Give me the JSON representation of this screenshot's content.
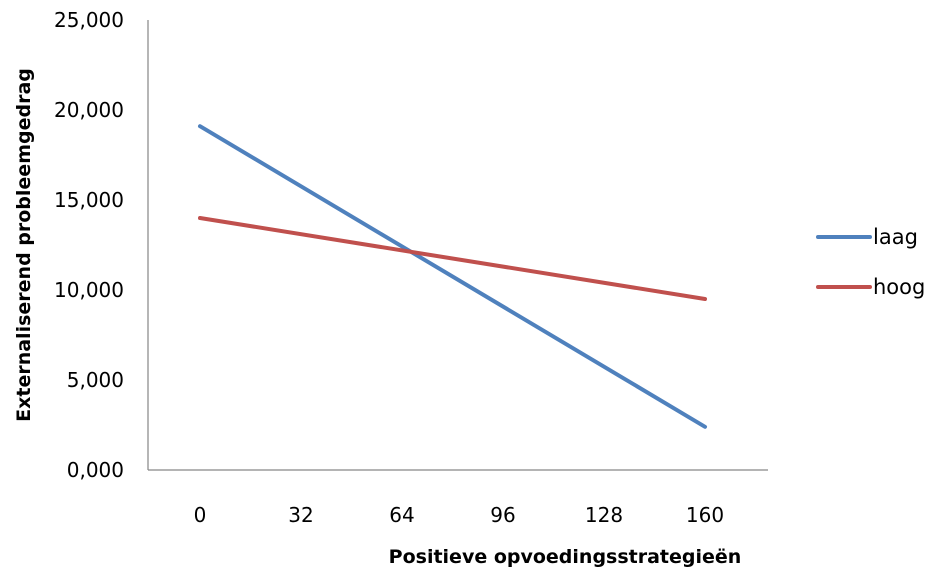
{
  "chart_data": {
    "type": "line",
    "title": "",
    "xlabel": "Positieve opvoedingsstrategieën",
    "ylabel": "Externaliserend probleemgedrag",
    "categories": [
      "0",
      "32",
      "64",
      "96",
      "128",
      "160"
    ],
    "x": [
      0,
      32,
      64,
      96,
      128,
      160
    ],
    "ylim": [
      0,
      25
    ],
    "yticks": [
      "0,000",
      "5,000",
      "10,000",
      "15,000",
      "20,000",
      "25,000"
    ],
    "grid": false,
    "legend": "right",
    "series": [
      {
        "name": "laag",
        "color": "#4f81bd",
        "points": [
          [
            0,
            19.1
          ],
          [
            160,
            2.4
          ]
        ]
      },
      {
        "name": "hoog",
        "color": "#c0504d",
        "points": [
          [
            0,
            14.0
          ],
          [
            160,
            9.5
          ]
        ]
      }
    ]
  }
}
